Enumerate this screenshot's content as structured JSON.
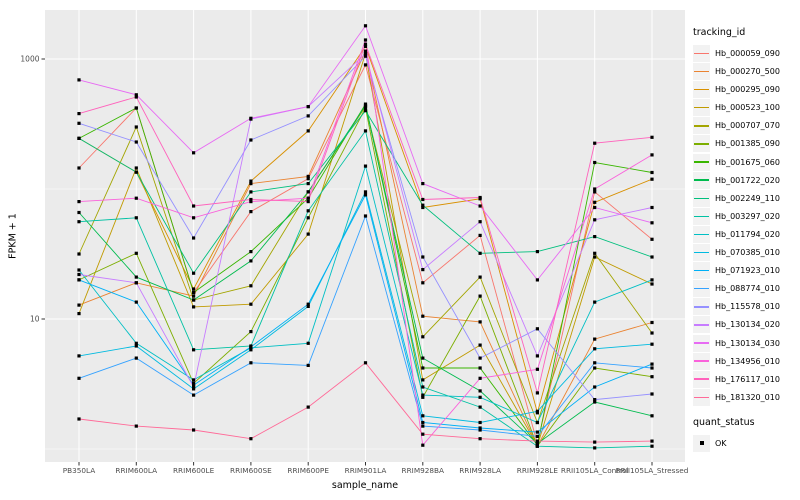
{
  "figure": {
    "legend": {
      "tracking_title": "tracking_id",
      "quant_title": "quant_status",
      "quant_items": [
        "OK"
      ]
    },
    "colors": {
      "panel_bg": "#EBEBEB",
      "grid": "#FFFFFF",
      "key_bg": "#F2F2F2",
      "axis_text": "#4D4D4D",
      "tick_mark": "#333333",
      "point": "#000000"
    }
  },
  "chart_data": {
    "type": "line",
    "title": "",
    "xlabel": "sample_name",
    "ylabel": "FPKM + 1",
    "y_scale": "log10",
    "ylim": [
      0.8,
      2400
    ],
    "grid": true,
    "legend_position": "right",
    "y_ticks": [
      {
        "value": 10,
        "label": "10"
      },
      {
        "value": 1000,
        "label": "1000"
      }
    ],
    "y_minor_gridlines": [
      1,
      100
    ],
    "categories": [
      "PB350LA",
      "RRIM600LA",
      "RRIM600LE",
      "RRIM600SE",
      "RRIM600PE",
      "RRIM901LA",
      "RRIM928BA",
      "RRIM928LA",
      "RRIM928LE",
      "RRII105LA_Control",
      "RRII105LA_Stressed"
    ],
    "point_legend": {
      "title": "quant_status",
      "items": [
        "OK"
      ]
    },
    "series": [
      {
        "name": "Hb_000059_090",
        "color": "#F8766D",
        "values": [
          145,
          420,
          16,
          67,
          120,
          900,
          19,
          44,
          1.1,
          95,
          41
        ]
      },
      {
        "name": "Hb_000270_500",
        "color": "#EA8331",
        "values": [
          12.8,
          19,
          15,
          110,
          125,
          1150,
          10.5,
          9.5,
          1.05,
          7,
          9.4
        ]
      },
      {
        "name": "Hb_000295_090",
        "color": "#D89000",
        "values": [
          245,
          135,
          17,
          115,
          280,
          1250,
          72,
          84,
          1.9,
          79,
          119
        ]
      },
      {
        "name": "Hb_000523_100",
        "color": "#C09B00",
        "values": [
          11,
          145,
          12.4,
          13,
          45,
          1100,
          3.4,
          6.3,
          1.06,
          30,
          18.6
        ]
      },
      {
        "name": "Hb_000707_070",
        "color": "#A3A500",
        "values": [
          31.6,
          300,
          14,
          18,
          95,
          430,
          7.3,
          21,
          1.6,
          32,
          7.8
        ]
      },
      {
        "name": "Hb_001385_090",
        "color": "#7CAE00",
        "values": [
          20,
          32,
          3.2,
          8,
          60,
          420,
          2.5,
          15,
          1.05,
          4.2,
          3.6
        ]
      },
      {
        "name": "Hb_001675_060",
        "color": "#39B600",
        "values": [
          245,
          420,
          16,
          33,
          85,
          450,
          4.2,
          4.2,
          1.07,
          160,
          134
        ]
      },
      {
        "name": "Hb_001722_020",
        "color": "#00BB4E",
        "values": [
          66,
          21,
          14,
          28,
          95,
          440,
          5,
          2.8,
          1.1,
          2.3,
          1.8
        ]
      },
      {
        "name": "Hb_002249_110",
        "color": "#00BF7D",
        "values": [
          245,
          135,
          22.5,
          95,
          110,
          400,
          75,
          32,
          33,
          43,
          30
        ]
      },
      {
        "name": "Hb_003297_020",
        "color": "#00C1A3",
        "values": [
          56,
          60,
          5.8,
          6.2,
          68,
          280,
          3,
          2.1,
          1.05,
          1.02,
          1.05
        ]
      },
      {
        "name": "Hb_011794_020",
        "color": "#00BFC4",
        "values": [
          23.8,
          6.5,
          3.4,
          6,
          6.5,
          150,
          2.6,
          2.5,
          1.6,
          13.5,
          20
        ]
      },
      {
        "name": "Hb_070385_010",
        "color": "#00BAE0",
        "values": [
          5.2,
          6.2,
          2.9,
          5.8,
          12.5,
          95,
          1.8,
          1.6,
          1.95,
          5.9,
          6.4
        ]
      },
      {
        "name": "Hb_071923_010",
        "color": "#00B0F6",
        "values": [
          20,
          13.5,
          3.1,
          6.1,
          13,
          90,
          1.6,
          1.45,
          1.35,
          3,
          4.5
        ]
      },
      {
        "name": "Hb_088774_010",
        "color": "#35A2FF",
        "values": [
          3.5,
          5,
          2.6,
          4.6,
          4.4,
          62,
          1.5,
          1.4,
          1.25,
          4.6,
          4.2
        ]
      },
      {
        "name": "Hb_115578_010",
        "color": "#9590FF",
        "values": [
          320,
          230,
          42,
          238,
          365,
          1050,
          30,
          5,
          8.4,
          2.4,
          2.65
        ]
      },
      {
        "name": "Hb_130134_020",
        "color": "#C77CFF",
        "values": [
          22,
          19,
          3,
          345,
          430,
          1100,
          24,
          56,
          5.2,
          58,
          72
        ]
      },
      {
        "name": "Hb_130134_030",
        "color": "#E76BF3",
        "values": [
          690,
          530,
          190,
          350,
          430,
          1800,
          110,
          74,
          20,
          72,
          55
        ]
      },
      {
        "name": "Hb_134956_010",
        "color": "#FA62DB",
        "values": [
          80,
          85,
          60,
          80,
          85,
          1400,
          1.07,
          3.5,
          4.1,
          100,
          183
        ]
      },
      {
        "name": "Hb_176117_010",
        "color": "#FF62BC",
        "values": [
          380,
          510,
          74,
          83,
          80,
          1300,
          83,
          86,
          2.7,
          225,
          250
        ]
      },
      {
        "name": "Hb_181320_010",
        "color": "#FF6A98",
        "values": [
          1.7,
          1.5,
          1.4,
          1.2,
          2.1,
          4.6,
          1.3,
          1.2,
          1.15,
          1.13,
          1.15
        ]
      }
    ]
  }
}
